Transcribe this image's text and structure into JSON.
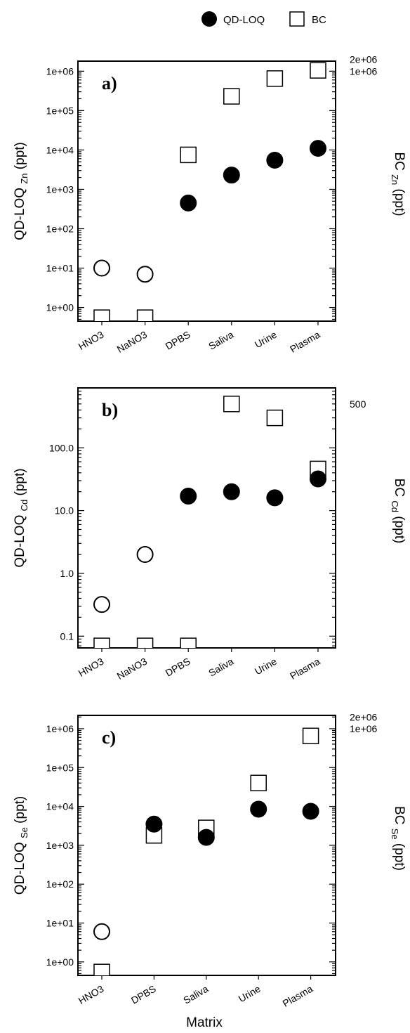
{
  "legend": {
    "filled_label": "QD-LOQ",
    "open_label": "BC"
  },
  "xlabel": "Matrix",
  "colors": {
    "axis": "#000000",
    "marker_fill": "#000000",
    "open_fill": "#ffffff"
  },
  "chart_data": [
    {
      "type": "scatter",
      "panel_label": "a)",
      "scale": "log",
      "categories": [
        "HNO3",
        "NaNO3",
        "DPBS",
        "Saliva",
        "Urine",
        "Plasma"
      ],
      "ylabel_left": "QD-LOQ",
      "ylabel_left_sub": "Zn",
      "ylabel_left_unit": "(ppt)",
      "ylabel_right": "BC",
      "ylabel_right_sub": "Zn",
      "ylabel_right_unit": "(ppt)",
      "ylim": [
        0.45,
        1800000
      ],
      "left_ticks": [
        "1e+00",
        "1e+01",
        "1e+02",
        "1e+03",
        "1e+04",
        "1e+05",
        "1e+06"
      ],
      "right_ticks": [
        {
          "value": 1000000,
          "label": "1e+06"
        },
        {
          "value": 2000000,
          "label": "2e+06"
        }
      ],
      "series": [
        {
          "name": "QD-LOQ",
          "marker": "circle",
          "points": [
            {
              "category": "HNO3",
              "value": 10,
              "fill": "open"
            },
            {
              "category": "NaNO3",
              "value": 7,
              "fill": "open"
            },
            {
              "category": "DPBS",
              "value": 450,
              "fill": "filled"
            },
            {
              "category": "Saliva",
              "value": 2300,
              "fill": "filled"
            },
            {
              "category": "Urine",
              "value": 5500,
              "fill": "filled"
            },
            {
              "category": "Plasma",
              "value": 11000,
              "fill": "filled"
            }
          ]
        },
        {
          "name": "BC",
          "marker": "square",
          "points": [
            {
              "category": "HNO3",
              "value": 0.55
            },
            {
              "category": "NaNO3",
              "value": 0.55
            },
            {
              "category": "DPBS",
              "value": 7500
            },
            {
              "category": "Saliva",
              "value": 230000
            },
            {
              "category": "Urine",
              "value": 650000
            },
            {
              "category": "Plasma",
              "value": 1050000
            }
          ]
        }
      ]
    },
    {
      "type": "scatter",
      "panel_label": "b)",
      "scale": "log",
      "categories": [
        "HNO3",
        "NaNO3",
        "DPBS",
        "Saliva",
        "Urine",
        "Plasma"
      ],
      "ylabel_left": "QD-LOQ",
      "ylabel_left_sub": "Cd",
      "ylabel_left_unit": "(ppt)",
      "ylabel_right": "BC",
      "ylabel_right_sub": "Cd",
      "ylabel_right_unit": "(ppt)",
      "ylim": [
        0.065,
        900
      ],
      "left_ticks": [
        "0.1",
        "1.0",
        "10.0",
        "100.0"
      ],
      "right_ticks": [
        {
          "value": 500,
          "label": "500"
        }
      ],
      "series": [
        {
          "name": "QD-LOQ",
          "marker": "circle",
          "points": [
            {
              "category": "HNO3",
              "value": 0.32,
              "fill": "open"
            },
            {
              "category": "NaNO3",
              "value": 2.0,
              "fill": "open"
            },
            {
              "category": "DPBS",
              "value": 17,
              "fill": "filled"
            },
            {
              "category": "Saliva",
              "value": 20,
              "fill": "filled"
            },
            {
              "category": "Urine",
              "value": 16,
              "fill": "filled"
            },
            {
              "category": "Plasma",
              "value": 32,
              "fill": "filled"
            }
          ]
        },
        {
          "name": "BC",
          "marker": "square",
          "points": [
            {
              "category": "HNO3",
              "value": 0.07
            },
            {
              "category": "NaNO3",
              "value": 0.07
            },
            {
              "category": "DPBS",
              "value": 0.07
            },
            {
              "category": "Saliva",
              "value": 500
            },
            {
              "category": "Urine",
              "value": 300
            },
            {
              "category": "Plasma",
              "value": 46
            }
          ]
        }
      ]
    },
    {
      "type": "scatter",
      "panel_label": "c)",
      "scale": "log",
      "categories": [
        "HNO3",
        "DPBS",
        "Saliva",
        "Urine",
        "Plasma"
      ],
      "ylabel_left": "QD-LOQ",
      "ylabel_left_sub": "Se",
      "ylabel_left_unit": "(ppt)",
      "ylabel_right": "BC",
      "ylabel_right_sub": "Se",
      "ylabel_right_unit": "(ppt)",
      "ylim": [
        0.45,
        2200000
      ],
      "left_ticks": [
        "1e+00",
        "1e+01",
        "1e+02",
        "1e+03",
        "1e+04",
        "1e+05",
        "1e+06"
      ],
      "right_ticks": [
        {
          "value": 1000000,
          "label": "1e+06"
        },
        {
          "value": 2000000,
          "label": "2e+06"
        }
      ],
      "series": [
        {
          "name": "QD-LOQ",
          "marker": "circle",
          "points": [
            {
              "category": "HNO3",
              "value": 6,
              "fill": "open"
            },
            {
              "category": "DPBS",
              "value": 3500,
              "fill": "filled"
            },
            {
              "category": "Saliva",
              "value": 1600,
              "fill": "filled"
            },
            {
              "category": "Urine",
              "value": 8500,
              "fill": "filled"
            },
            {
              "category": "Plasma",
              "value": 7500,
              "fill": "filled"
            }
          ]
        },
        {
          "name": "BC",
          "marker": "square",
          "points": [
            {
              "category": "HNO3",
              "value": 0.55
            },
            {
              "category": "DPBS",
              "value": 1800
            },
            {
              "category": "Saliva",
              "value": 2800
            },
            {
              "category": "Urine",
              "value": 40000
            },
            {
              "category": "Plasma",
              "value": 650000
            }
          ]
        }
      ]
    }
  ]
}
